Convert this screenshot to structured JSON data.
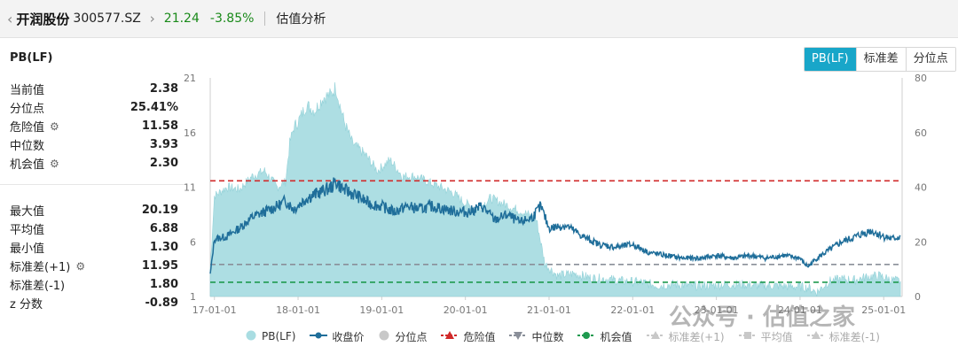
{
  "topbar": {
    "back_icon": "chevron-left-icon",
    "stock_name": "开润股份",
    "stock_code": "300577.SZ",
    "forward_icon": "chevron-right-icon",
    "price": "21.24",
    "change": "-3.85%",
    "section": "估值分析",
    "change_color": "#1a8a1a"
  },
  "panel": {
    "title": "PB(LF)",
    "toggles": [
      "PB(LF)",
      "标准差",
      "分位点"
    ],
    "active_toggle": "PB(LF)"
  },
  "stats": {
    "group1": [
      {
        "label": "当前值",
        "value": "2.38",
        "gear": false
      },
      {
        "label": "分位点",
        "value": "25.41%",
        "gear": false
      },
      {
        "label": "危险值",
        "value": "11.58",
        "gear": true
      },
      {
        "label": "中位数",
        "value": "3.93",
        "gear": false
      },
      {
        "label": "机会值",
        "value": "2.30",
        "gear": true
      }
    ],
    "group2": [
      {
        "label": "最大值",
        "value": "20.19",
        "gear": false
      },
      {
        "label": "平均值",
        "value": "6.88",
        "gear": false
      },
      {
        "label": "最小值",
        "value": "1.30",
        "gear": false
      },
      {
        "label": "标准差(+1)",
        "value": "11.95",
        "gear": true
      },
      {
        "label": "标准差(-1)",
        "value": "1.80",
        "gear": false
      },
      {
        "label": "z 分数",
        "value": "-0.89",
        "gear": false
      }
    ]
  },
  "chart_data": {
    "type": "area",
    "x_ticks": [
      "17-01-01",
      "18-01-01",
      "19-01-01",
      "20-01-01",
      "21-01-01",
      "22-01-01",
      "23-01-01",
      "24-01-01",
      "25-01-01"
    ],
    "x_tick_years": [
      2017,
      2018,
      2019,
      2020,
      2021,
      2022,
      2023,
      2024,
      2025
    ],
    "x_range": [
      2016.95,
      2025.22
    ],
    "y_left_ticks": [
      "21",
      "16",
      "11",
      "6",
      "1"
    ],
    "y_left_range": [
      1,
      21
    ],
    "y_right_ticks": [
      "80",
      "60",
      "40",
      "20",
      "0"
    ],
    "y_right_range": [
      0,
      80
    ],
    "grid": false,
    "legend_position": "bottom",
    "series": [
      {
        "name": "PB(LF)",
        "axis": "left",
        "kind": "area",
        "color": "#a9dde2",
        "x": [
          2016.95,
          2017.0,
          2017.15,
          2017.3,
          2017.45,
          2017.6,
          2017.75,
          2017.85,
          2017.9,
          2017.95,
          2018.0,
          2018.1,
          2018.2,
          2018.3,
          2018.4,
          2018.45,
          2018.5,
          2018.55,
          2018.65,
          2018.8,
          2018.95,
          2019.1,
          2019.25,
          2019.4,
          2019.55,
          2019.7,
          2019.85,
          2020.0,
          2020.15,
          2020.3,
          2020.45,
          2020.6,
          2020.75,
          2020.85,
          2020.95,
          2021.1,
          2021.3,
          2021.5,
          2021.7,
          2021.9,
          2022.1,
          2022.3,
          2022.5,
          2022.7,
          2022.9,
          2023.1,
          2023.3,
          2023.5,
          2023.7,
          2023.9,
          2024.0,
          2024.1,
          2024.2,
          2024.35,
          2024.5,
          2024.65,
          2024.8,
          2024.95,
          2025.1,
          2025.2
        ],
        "y": [
          3.5,
          10.2,
          11.0,
          10.8,
          12.0,
          12.5,
          11.0,
          11.5,
          15.0,
          16.5,
          17.0,
          18.5,
          18.0,
          19.2,
          19.5,
          20.19,
          18.5,
          17.0,
          15.0,
          14.0,
          12.5,
          13.5,
          12.0,
          12.0,
          11.5,
          11.0,
          10.5,
          9.5,
          9.0,
          10.0,
          9.5,
          9.0,
          8.5,
          8.0,
          4.0,
          2.9,
          3.1,
          2.7,
          2.6,
          2.4,
          2.3,
          2.0,
          2.1,
          2.0,
          2.0,
          2.1,
          2.1,
          2.0,
          2.0,
          1.9,
          1.9,
          1.8,
          1.4,
          2.4,
          2.6,
          2.5,
          2.8,
          2.9,
          2.5,
          2.4
        ]
      },
      {
        "name": "收盘价",
        "axis": "right",
        "kind": "line",
        "color": "#1f6e9a",
        "x": [
          2016.95,
          2017.0,
          2017.15,
          2017.3,
          2017.45,
          2017.6,
          2017.75,
          2017.85,
          2017.95,
          2018.1,
          2018.25,
          2018.4,
          2018.45,
          2018.55,
          2018.7,
          2018.85,
          2019.0,
          2019.15,
          2019.3,
          2019.45,
          2019.6,
          2019.75,
          2019.9,
          2020.05,
          2020.2,
          2020.35,
          2020.5,
          2020.65,
          2020.8,
          2020.9,
          2021.0,
          2021.2,
          2021.4,
          2021.6,
          2021.8,
          2022.0,
          2022.2,
          2022.4,
          2022.6,
          2022.8,
          2023.0,
          2023.2,
          2023.4,
          2023.6,
          2023.8,
          2024.0,
          2024.05,
          2024.1,
          2024.2,
          2024.35,
          2024.5,
          2024.6,
          2024.75,
          2024.85,
          2025.0,
          2025.1,
          2025.2
        ],
        "y": [
          8,
          21,
          22,
          25,
          29,
          31,
          33,
          35,
          32,
          36,
          38,
          40,
          42,
          39,
          37,
          34,
          33,
          31,
          33,
          32,
          33,
          32,
          31,
          31,
          33,
          28,
          30,
          27,
          29,
          33,
          25,
          26,
          22,
          19,
          18,
          19,
          16,
          15,
          14,
          14,
          15,
          14,
          15,
          14,
          15,
          14,
          12,
          11,
          14,
          17,
          20,
          21,
          23,
          24,
          22,
          21,
          22
        ]
      },
      {
        "name": "分位点",
        "kind": "legend-only",
        "color": "#c8c8c8"
      },
      {
        "name": "危险值",
        "axis": "left",
        "kind": "hline",
        "value": 11.58,
        "color": "#d12a2a",
        "dash": true
      },
      {
        "name": "中位数",
        "axis": "left",
        "kind": "hline",
        "value": 3.93,
        "color": "#8a8f99",
        "dash": true
      },
      {
        "name": "机会值",
        "axis": "left",
        "kind": "hline",
        "value": 2.3,
        "color": "#1f9a4f",
        "dash": true
      },
      {
        "name": "标准差(+1)",
        "kind": "legend-only",
        "color": "#c8c8c8"
      },
      {
        "name": "平均值",
        "kind": "legend-only",
        "color": "#c8c8c8"
      },
      {
        "name": "标准差(-1)",
        "kind": "legend-only",
        "color": "#c8c8c8"
      }
    ]
  },
  "legend": [
    {
      "label": "PB(LF)",
      "icon": "circle",
      "color": "#a9dde2",
      "active": true
    },
    {
      "label": "收盘价",
      "icon": "line-dot",
      "color": "#1f6e9a",
      "active": true
    },
    {
      "label": "分位点",
      "icon": "circle",
      "color": "#c8c8c8",
      "active": true
    },
    {
      "label": "危险值",
      "icon": "dash-triangle",
      "color": "#d12a2a",
      "active": true
    },
    {
      "label": "中位数",
      "icon": "dash-triangle-down",
      "color": "#8a8f99",
      "active": true
    },
    {
      "label": "机会值",
      "icon": "dash-dot",
      "color": "#1f9a4f",
      "active": true
    },
    {
      "label": "标准差(+1)",
      "icon": "dash-triangle",
      "color": "#c8c8c8",
      "active": false
    },
    {
      "label": "平均值",
      "icon": "dash-square",
      "color": "#c8c8c8",
      "active": false
    },
    {
      "label": "标准差(-1)",
      "icon": "dash-triangle",
      "color": "#c8c8c8",
      "active": false
    }
  ],
  "watermark": "公众号 · 估值之家"
}
